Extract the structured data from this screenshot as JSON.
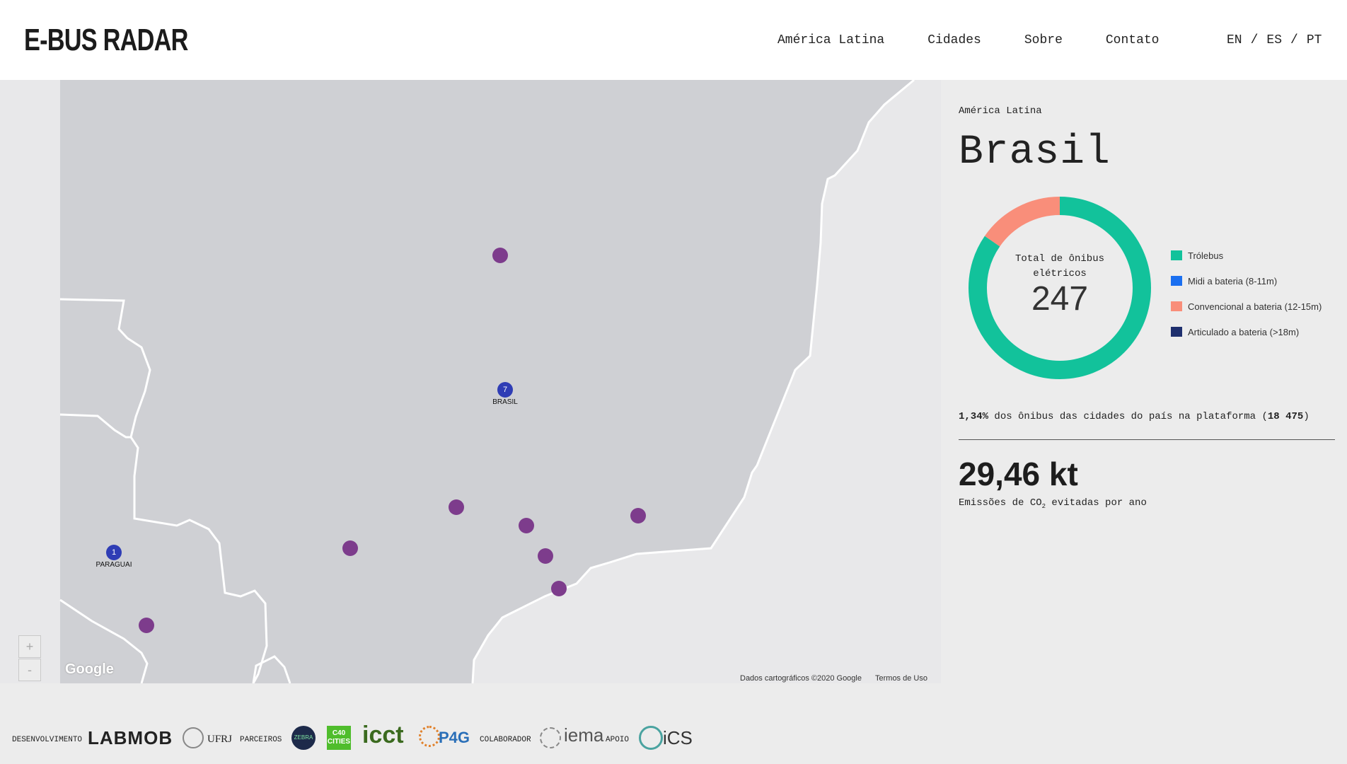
{
  "header": {
    "logo": "E-BUS RADAR",
    "nav": [
      "América Latina",
      "Cidades",
      "Sobre",
      "Contato"
    ],
    "languages": [
      "EN",
      "ES",
      "PT"
    ],
    "lang_sep": "/"
  },
  "map": {
    "zoom_in": "+",
    "zoom_out": "-",
    "google": "Google",
    "attribution": "Dados cartográficos ©2020 Google",
    "terms": "Termos de Uso",
    "clusters": [
      {
        "count": "7",
        "label": "BRASIL"
      },
      {
        "count": "1",
        "label": "PARAGUAI"
      }
    ]
  },
  "panel": {
    "region": "América Latina",
    "country": "Brasil",
    "donut_label": "Total de ônibus elétricos",
    "total": "247",
    "segments": [
      {
        "name": "Trólebus",
        "value": 0.846,
        "color": "#12c29b"
      },
      {
        "name": "Midi a bateria (8-11m)",
        "value": 0.0,
        "color": "#1a6ff0"
      },
      {
        "name": "Convencional a bateria (12-15m)",
        "value": 0.154,
        "color": "#f98e7a"
      },
      {
        "name": "Articulado a bateria (>18m)",
        "value": 0.0,
        "color": "#1e2f6e"
      }
    ],
    "share_pct": "1,34%",
    "share_text": " dos ônibus das cidades do país na plataforma (",
    "share_count": "18 475",
    "share_close": ")",
    "emissions": "29,46 kt",
    "emissions_pre": "Emissões de CO",
    "emissions_sub": "2",
    "emissions_post": " evitadas por ano"
  },
  "footer": {
    "desenvolvimento": "DESENVOLVIMENTO",
    "labmob": "LABMOB",
    "ufrj": "UFRJ",
    "parceiros": "PARCEIROS",
    "c40_top": "C40",
    "c40_bottom": "CITIES",
    "icct": "icct",
    "p4g": "P4G",
    "colaborador": "COLABORADOR",
    "iema": "iema",
    "apoio": "APOIO",
    "ics": "iCS",
    "zebra": "ZEBRA"
  }
}
